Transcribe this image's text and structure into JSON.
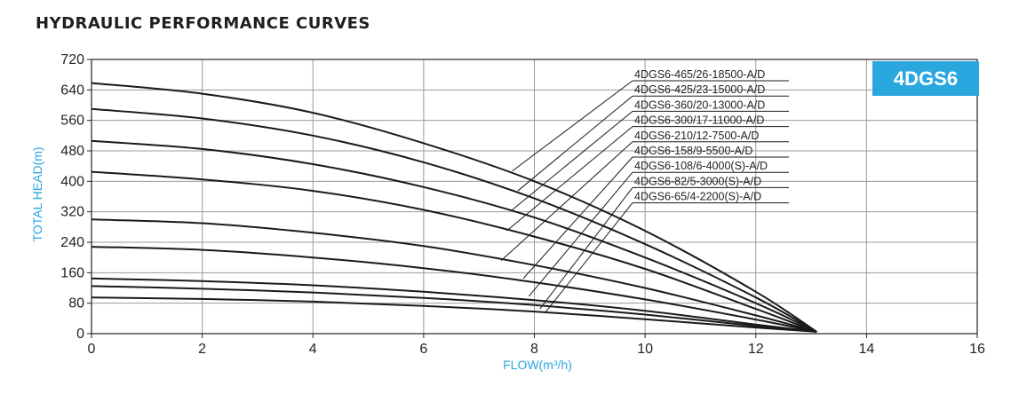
{
  "header": {
    "title": "HYDRAULIC PERFORMANCE CURVES"
  },
  "badge": {
    "text": "4DGS6",
    "color": "#2ba7e0"
  },
  "chart_data": {
    "type": "line",
    "title": "HYDRAULIC PERFORMANCE CURVES",
    "xlabel": "FLOW(m³/h)",
    "ylabel": "TOTAL HEAD(m)",
    "xlim": [
      0,
      16
    ],
    "ylim": [
      0,
      720
    ],
    "xticks": [
      0,
      2,
      4,
      6,
      8,
      10,
      12,
      14,
      16
    ],
    "yticks": [
      0,
      80,
      160,
      240,
      320,
      400,
      480,
      560,
      640,
      720
    ],
    "grid": true,
    "label_color": "#2aa6e0",
    "x": [
      0,
      2,
      4,
      6,
      8,
      10,
      12,
      13.1
    ],
    "series": [
      {
        "name": "4DGS6-465/26-18500-A/D",
        "values": [
          658,
          630,
          580,
          500,
          400,
          270,
          110,
          5
        ]
      },
      {
        "name": "4DGS6-425/23-15000-A/D",
        "values": [
          590,
          565,
          520,
          450,
          355,
          235,
          95,
          5
        ]
      },
      {
        "name": "4DGS6-360/20-13000-A/D",
        "values": [
          506,
          485,
          445,
          385,
          305,
          200,
          80,
          5
        ]
      },
      {
        "name": "4DGS6-300/17-11000-A/D",
        "values": [
          425,
          405,
          375,
          325,
          255,
          170,
          65,
          5
        ]
      },
      {
        "name": "4DGS6-210/12-7500-A/D",
        "values": [
          300,
          290,
          265,
          230,
          180,
          120,
          48,
          5
        ]
      },
      {
        "name": "4DGS6-158/9-5500-A/D",
        "values": [
          228,
          220,
          200,
          172,
          135,
          90,
          37,
          5
        ]
      },
      {
        "name": "4DGS6-108/6-4000(S)-A/D",
        "values": [
          145,
          138,
          127,
          110,
          88,
          60,
          24,
          5
        ]
      },
      {
        "name": "4DGS6-82/5-3000(S)-A/D",
        "values": [
          125,
          118,
          108,
          94,
          75,
          50,
          20,
          5
        ]
      },
      {
        "name": "4DGS6-65/4-2200(S)-A/D",
        "values": [
          95,
          91,
          84,
          73,
          58,
          38,
          16,
          5
        ]
      }
    ],
    "annotations": [
      {
        "series": "4DGS6-465/26-18500-A/D",
        "at": [
          7.6,
          427
        ]
      },
      {
        "series": "4DGS6-425/23-15000-A/D",
        "at": [
          7.7,
          375
        ]
      },
      {
        "series": "4DGS6-360/20-13000-A/D",
        "at": [
          7.6,
          325
        ]
      },
      {
        "series": "4DGS6-300/17-11000-A/D",
        "at": [
          7.5,
          270
        ]
      },
      {
        "series": "4DGS6-210/12-7500-A/D",
        "at": [
          7.4,
          192
        ]
      },
      {
        "series": "4DGS6-158/9-5500-A/D",
        "at": [
          7.8,
          145
        ]
      },
      {
        "series": "4DGS6-108/6-4000(S)-A/D",
        "at": [
          7.9,
          98
        ]
      },
      {
        "series": "4DGS6-82/5-3000(S)-A/D",
        "at": [
          8.1,
          65
        ]
      },
      {
        "series": "4DGS6-65/4-2200(S)-A/D",
        "at": [
          8.2,
          56
        ]
      }
    ]
  }
}
